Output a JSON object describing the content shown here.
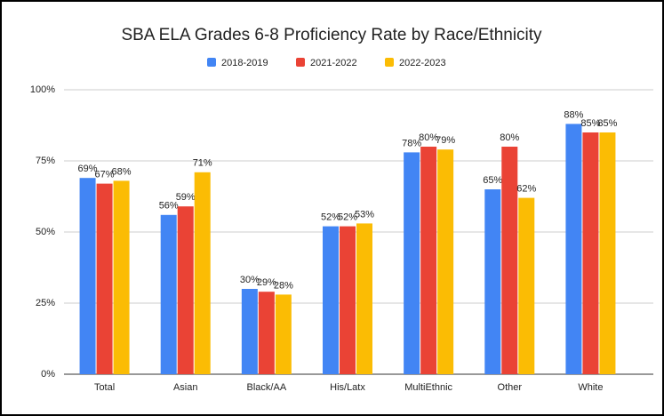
{
  "chart_data": {
    "type": "bar",
    "title": "SBA ELA Grades 6-8 Proficiency Rate by Race/Ethnicity",
    "categories": [
      "Total",
      "Asian",
      "Black/AA",
      "His/Latx",
      "MultiEthnic",
      "Other",
      "White"
    ],
    "series": [
      {
        "name": "2018-2019",
        "color": "#4285f4",
        "values": [
          69,
          56,
          30,
          52,
          78,
          65,
          88
        ],
        "value_labels": [
          "69%",
          "56%",
          "30%",
          "52%",
          "78%",
          "65%",
          "88%"
        ]
      },
      {
        "name": "2021-2022",
        "color": "#ea4335",
        "values": [
          67,
          59,
          29,
          52,
          80,
          80,
          85
        ],
        "value_labels": [
          "67%",
          "59%",
          "29%",
          "52%",
          "80%",
          "80%",
          "85%"
        ]
      },
      {
        "name": "2022-2023",
        "color": "#fbbc04",
        "values": [
          68,
          71,
          28,
          53,
          79,
          62,
          85
        ],
        "value_labels": [
          "68%",
          "71%",
          "28%",
          "53%",
          "79%",
          "62%",
          "85%"
        ]
      }
    ],
    "ylim": [
      0,
      100
    ],
    "yticks": [
      {
        "value": 0,
        "label": "0%"
      },
      {
        "value": 25,
        "label": "25%"
      },
      {
        "value": 50,
        "label": "50%"
      },
      {
        "value": 75,
        "label": "75%"
      },
      {
        "value": 100,
        "label": "100%"
      }
    ],
    "grid": true,
    "legend": "top"
  }
}
